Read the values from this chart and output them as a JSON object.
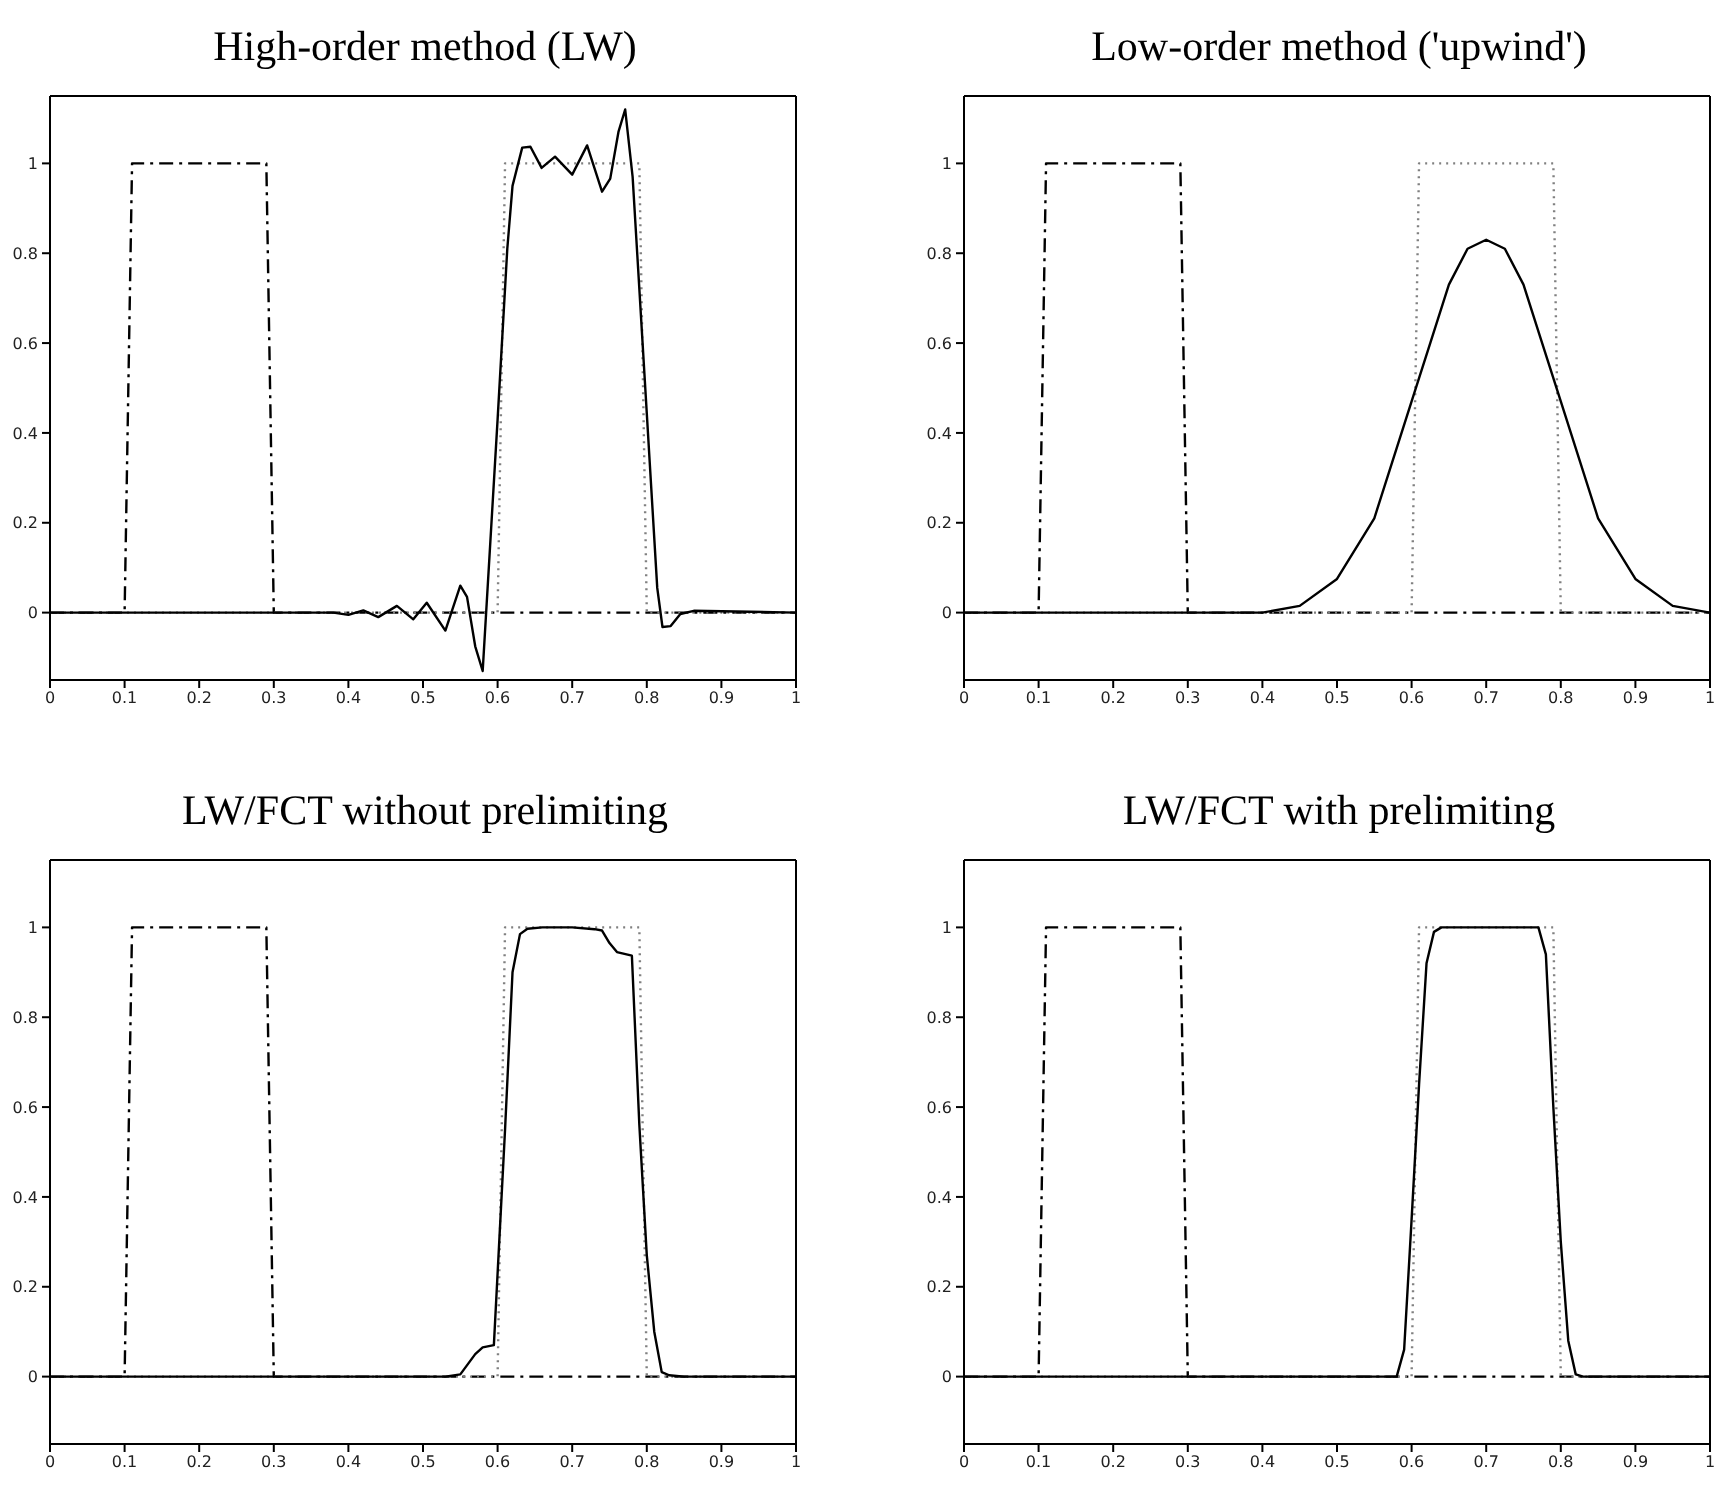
{
  "chart_data": [
    {
      "type": "line",
      "title": "High-order method (LW)",
      "xlim": [
        0,
        1
      ],
      "ylim": [
        -0.15,
        1.15
      ],
      "xticks": [
        0,
        0.1,
        0.2,
        0.3,
        0.4,
        0.5,
        0.6,
        0.7,
        0.8,
        0.9,
        1
      ],
      "yticks": [
        0,
        0.2,
        0.4,
        0.6,
        0.8,
        1
      ],
      "series": [
        {
          "color": "#000000",
          "line_style": "dashed",
          "x": [
            0,
            0.1,
            0.11,
            0.29,
            0.3,
            1
          ],
          "values": [
            0,
            0,
            1,
            1,
            0,
            0
          ]
        },
        {
          "color": "#808080",
          "line_style": "dotted",
          "x": [
            0,
            0.6,
            0.61,
            0.79,
            0.8,
            1
          ],
          "values": [
            0,
            0,
            1,
            1,
            0,
            0
          ]
        },
        {
          "color": "#000000",
          "line_style": "solid",
          "x": [
            0,
            0.35,
            0.38,
            0.4,
            0.42,
            0.44,
            0.465,
            0.487,
            0.505,
            0.53,
            0.55,
            0.559,
            0.57,
            0.58,
            0.6,
            0.613,
            0.62,
            0.633,
            0.644,
            0.659,
            0.677,
            0.7,
            0.72,
            0.74,
            0.751,
            0.762,
            0.771,
            0.781,
            0.814,
            0.821,
            0.832,
            0.845,
            0.863,
            1
          ],
          "values": [
            0,
            0,
            0,
            -0.005,
            0.005,
            -0.01,
            0.015,
            -0.015,
            0.022,
            -0.04,
            0.06,
            0.035,
            -0.075,
            -0.13,
            0.43,
            0.81,
            0.95,
            1.035,
            1.037,
            0.99,
            1.015,
            0.975,
            1.04,
            0.937,
            0.966,
            1.07,
            1.12,
            0.97,
            0.055,
            -0.032,
            -0.03,
            -0.003,
            0.004,
            0
          ]
        }
      ]
    },
    {
      "type": "line",
      "title": "Low-order method ('upwind')",
      "xlim": [
        0,
        1
      ],
      "ylim": [
        -0.15,
        1.15
      ],
      "xticks": [
        0,
        0.1,
        0.2,
        0.3,
        0.4,
        0.5,
        0.6,
        0.7,
        0.8,
        0.9,
        1
      ],
      "yticks": [
        0,
        0.2,
        0.4,
        0.6,
        0.8,
        1
      ],
      "series": [
        {
          "color": "#000000",
          "line_style": "dashed",
          "x": [
            0,
            0.1,
            0.11,
            0.29,
            0.3,
            1
          ],
          "values": [
            0,
            0,
            1,
            1,
            0,
            0
          ]
        },
        {
          "color": "#808080",
          "line_style": "dotted",
          "x": [
            0,
            0.6,
            0.61,
            0.79,
            0.8,
            1
          ],
          "values": [
            0,
            0,
            1,
            1,
            0,
            0
          ]
        },
        {
          "color": "#000000",
          "line_style": "solid",
          "x": [
            0,
            0.4,
            0.45,
            0.5,
            0.55,
            0.6,
            0.625,
            0.65,
            0.675,
            0.7,
            0.725,
            0.75,
            0.775,
            0.8,
            0.85,
            0.9,
            0.95,
            1
          ],
          "values": [
            0,
            0,
            0.015,
            0.075,
            0.21,
            0.47,
            0.6,
            0.73,
            0.81,
            0.83,
            0.81,
            0.73,
            0.6,
            0.47,
            0.21,
            0.075,
            0.015,
            0
          ]
        }
      ]
    },
    {
      "type": "line",
      "title": "LW/FCT without prelimiting",
      "xlim": [
        0,
        1
      ],
      "ylim": [
        -0.15,
        1.15
      ],
      "xticks": [
        0,
        0.1,
        0.2,
        0.3,
        0.4,
        0.5,
        0.6,
        0.7,
        0.8,
        0.9,
        1
      ],
      "yticks": [
        0,
        0.2,
        0.4,
        0.6,
        0.8,
        1
      ],
      "series": [
        {
          "color": "#000000",
          "line_style": "dashed",
          "x": [
            0,
            0.1,
            0.11,
            0.29,
            0.3,
            1
          ],
          "values": [
            0,
            0,
            1,
            1,
            0,
            0
          ]
        },
        {
          "color": "#808080",
          "line_style": "dotted",
          "x": [
            0,
            0.6,
            0.61,
            0.79,
            0.8,
            1
          ],
          "values": [
            0,
            0,
            1,
            1,
            0,
            0
          ]
        },
        {
          "color": "#000000",
          "line_style": "solid",
          "x": [
            0,
            0.53,
            0.55,
            0.57,
            0.58,
            0.595,
            0.61,
            0.62,
            0.63,
            0.64,
            0.66,
            0.7,
            0.73,
            0.74,
            0.75,
            0.76,
            0.78,
            0.79,
            0.8,
            0.81,
            0.82,
            0.83,
            0.85,
            1
          ],
          "values": [
            0,
            0,
            0.005,
            0.05,
            0.065,
            0.07,
            0.55,
            0.9,
            0.985,
            0.997,
            1,
            1,
            0.996,
            0.993,
            0.965,
            0.945,
            0.937,
            0.56,
            0.27,
            0.1,
            0.01,
            0.003,
            0,
            0
          ]
        }
      ]
    },
    {
      "type": "line",
      "title": "LW/FCT with prelimiting",
      "xlim": [
        0,
        1
      ],
      "ylim": [
        -0.15,
        1.15
      ],
      "xticks": [
        0,
        0.1,
        0.2,
        0.3,
        0.4,
        0.5,
        0.6,
        0.7,
        0.8,
        0.9,
        1
      ],
      "yticks": [
        0,
        0.2,
        0.4,
        0.6,
        0.8,
        1
      ],
      "series": [
        {
          "color": "#000000",
          "line_style": "dashed",
          "x": [
            0,
            0.1,
            0.11,
            0.29,
            0.3,
            1
          ],
          "values": [
            0,
            0,
            1,
            1,
            0,
            0
          ]
        },
        {
          "color": "#808080",
          "line_style": "dotted",
          "x": [
            0,
            0.6,
            0.61,
            0.79,
            0.8,
            1
          ],
          "values": [
            0,
            0,
            1,
            1,
            0,
            0
          ]
        },
        {
          "color": "#000000",
          "line_style": "solid",
          "x": [
            0,
            0.58,
            0.59,
            0.6,
            0.61,
            0.62,
            0.63,
            0.64,
            0.77,
            0.78,
            0.79,
            0.8,
            0.81,
            0.82,
            0.83,
            1
          ],
          "values": [
            0,
            0,
            0.06,
            0.35,
            0.65,
            0.92,
            0.99,
            1,
            1,
            0.94,
            0.6,
            0.3,
            0.08,
            0.005,
            0,
            0
          ]
        }
      ]
    }
  ]
}
